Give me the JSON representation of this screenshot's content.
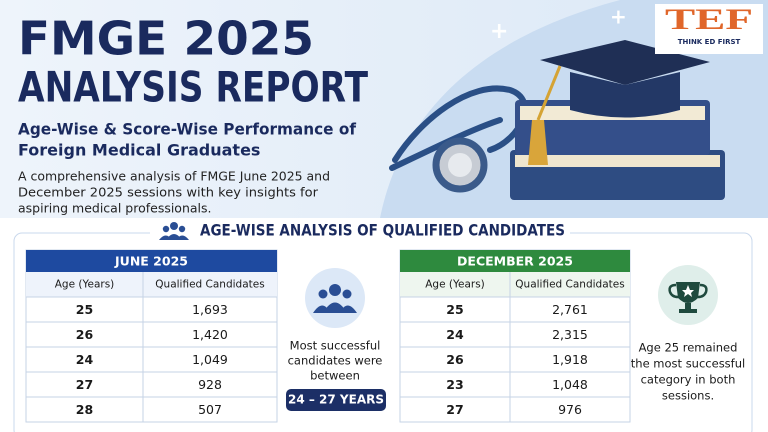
{
  "header": {
    "title_lines": [
      "FMGE 2025",
      "ANALYSIS REPORT"
    ],
    "subtitle_lines": [
      "Age-Wise & Score-Wise Performance of",
      "Foreign Medical Graduates"
    ],
    "description_lines": [
      "A comprehensive analysis of FMGE June 2025 and",
      "December 2025 sessions with key insights for",
      "aspiring medical professionals."
    ],
    "logo": {
      "letters": "TEF",
      "tagline": "THINK ED FIRST"
    }
  },
  "section": {
    "title": "AGE-WISE ANALYSIS OF QUALIFIED CANDIDATES"
  },
  "june_table": {
    "title": "JUNE 2025",
    "columns": [
      "Age (Years)",
      "Qualified Candidates"
    ],
    "rows": [
      [
        "25",
        "1,693"
      ],
      [
        "26",
        "1,420"
      ],
      [
        "24",
        "1,049"
      ],
      [
        "27",
        "928"
      ],
      [
        "28",
        "507"
      ]
    ]
  },
  "december_table": {
    "title": "DECEMBER 2025",
    "columns": [
      "Age (Years)",
      "Qualified Candidates"
    ],
    "rows": [
      [
        "25",
        "2,761"
      ],
      [
        "24",
        "2,315"
      ],
      [
        "26",
        "1,918"
      ],
      [
        "23",
        "1,048"
      ],
      [
        "27",
        "976"
      ]
    ]
  },
  "middle_callout": {
    "lines": [
      "Most successful",
      "candidates were",
      "between"
    ],
    "highlight": "24 – 27 YEARS"
  },
  "right_callout": {
    "lines": [
      "Age 25 remained",
      "the most successful",
      "category in both",
      "sessions."
    ]
  }
}
